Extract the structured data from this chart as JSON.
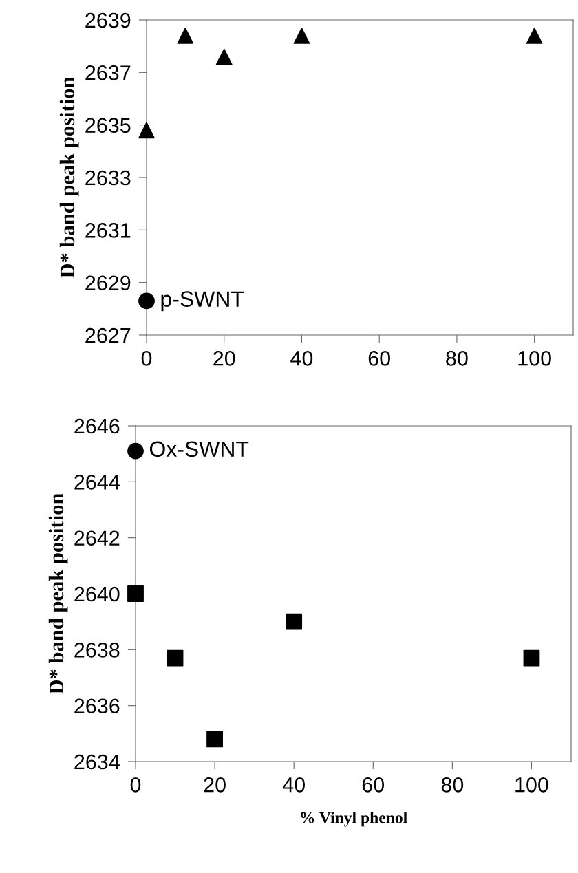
{
  "chart_data": [
    {
      "type": "scatter",
      "ylabel": "D* band peak position",
      "xlim": [
        0,
        110
      ],
      "ylim": [
        2627,
        2639
      ],
      "xticks": [
        0,
        20,
        40,
        60,
        80,
        100
      ],
      "yticks": [
        2627,
        2629,
        2631,
        2633,
        2635,
        2637,
        2639
      ],
      "grid": false,
      "legend": false,
      "series": [
        {
          "name": "p-SWNT",
          "color": "#000000",
          "marker": "circle",
          "x": [
            0
          ],
          "values": [
            2628.3
          ]
        },
        {
          "color": "#000000",
          "marker": "triangle",
          "x": [
            0,
            10,
            20,
            40,
            100
          ],
          "values": [
            2634.8,
            2638.4,
            2637.6,
            2638.4,
            2638.4
          ]
        }
      ]
    },
    {
      "type": "scatter",
      "xlabel": "% Vinyl phenol",
      "ylabel": "D* band peak position",
      "xlim": [
        0,
        110
      ],
      "ylim": [
        2634,
        2646
      ],
      "xticks": [
        0,
        20,
        40,
        60,
        80,
        100
      ],
      "yticks": [
        2634,
        2636,
        2638,
        2640,
        2642,
        2644,
        2646
      ],
      "grid": false,
      "legend": false,
      "series": [
        {
          "name": "Ox-SWNT",
          "color": "#000000",
          "marker": "circle",
          "x": [
            0
          ],
          "values": [
            2645.1
          ]
        },
        {
          "color": "#000000",
          "marker": "square",
          "x": [
            0,
            10,
            20,
            40,
            100
          ],
          "values": [
            2640.0,
            2637.7,
            2634.8,
            2639.0,
            2637.7
          ]
        }
      ]
    }
  ]
}
